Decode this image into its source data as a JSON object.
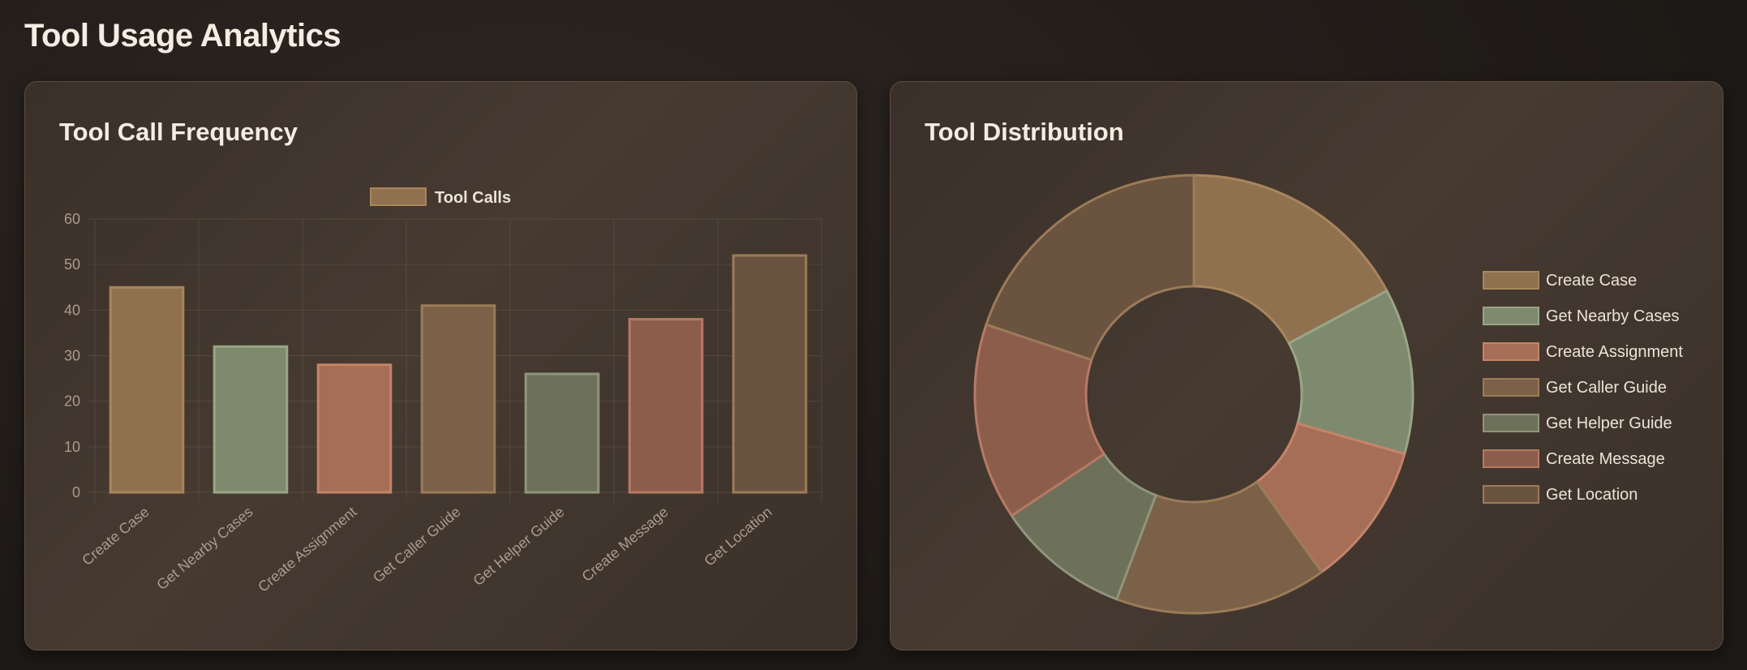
{
  "page": {
    "title": "Tool Usage Analytics"
  },
  "bar_card": {
    "title": "Tool Call Frequency"
  },
  "pie_card": {
    "title": "Tool Distribution"
  },
  "colors": {
    "Create Case": "#8f7150",
    "Get Nearby Cases": "#7e8a6d",
    "Create Assignment": "#a66e56",
    "Get Caller Guide": "#7a6147",
    "Get Helper Guide": "#6d715a",
    "Create Message": "#8c5d4b",
    "Get Location": "#6a5440"
  },
  "border_colors": {
    "Create Case": "#a9855c",
    "Get Nearby Cases": "#9aa586",
    "Create Assignment": "#c4846a",
    "Get Caller Guide": "#9c7b58",
    "Get Helper Guide": "#8f957a",
    "Create Message": "#b67a63",
    "Get Location": "#9c7b58"
  },
  "chart_data": [
    {
      "type": "bar",
      "title": "Tool Call Frequency",
      "categories": [
        "Create Case",
        "Get Nearby Cases",
        "Create Assignment",
        "Get Caller Guide",
        "Get Helper Guide",
        "Create Message",
        "Get Location"
      ],
      "series": [
        {
          "name": "Tool Calls",
          "values": [
            45,
            32,
            28,
            41,
            26,
            38,
            52
          ]
        }
      ],
      "yticks": [
        "0",
        "10",
        "20",
        "30",
        "40",
        "50",
        "60"
      ],
      "ylim": [
        0,
        60
      ],
      "grid": true,
      "legend": "top-center"
    },
    {
      "type": "pie",
      "subtype": "doughnut",
      "title": "Tool Distribution",
      "labels": [
        "Create Case",
        "Get Nearby Cases",
        "Create Assignment",
        "Get Caller Guide",
        "Get Helper Guide",
        "Create Message",
        "Get Location"
      ],
      "values": [
        45,
        32,
        28,
        41,
        26,
        38,
        52
      ],
      "legend": "right"
    }
  ]
}
